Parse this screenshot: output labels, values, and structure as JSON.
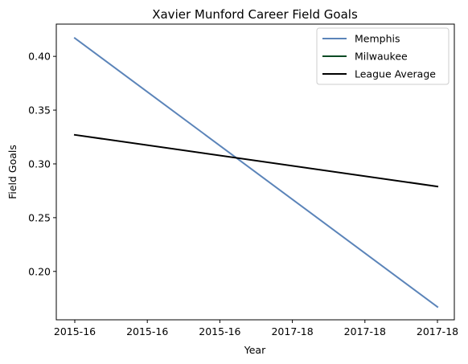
{
  "chart_data": {
    "type": "line",
    "title": "Xavier Munford Career Field Goals",
    "xlabel": "Year",
    "ylabel": "Field Goals",
    "x_tick_labels": [
      "2015-16",
      "2015-16",
      "2015-16",
      "2017-18",
      "2017-18",
      "2017-18"
    ],
    "x_range": [
      0,
      1
    ],
    "ylim": [
      0.155,
      0.43
    ],
    "y_ticks": [
      0.2,
      0.25,
      0.3,
      0.35,
      0.4
    ],
    "y_tick_labels": [
      "0.20",
      "0.25",
      "0.30",
      "0.35",
      "0.40"
    ],
    "grid": false,
    "legend_position": "top-right",
    "series": [
      {
        "name": "Memphis",
        "color": "#5b84b9",
        "x": [
          0,
          1
        ],
        "values": [
          0.417,
          0.167
        ]
      },
      {
        "name": "Milwaukee",
        "color": "#0b4a24",
        "x": [],
        "values": []
      },
      {
        "name": "League Average",
        "color": "#000000",
        "x": [
          0,
          1
        ],
        "values": [
          0.327,
          0.279
        ]
      }
    ]
  }
}
